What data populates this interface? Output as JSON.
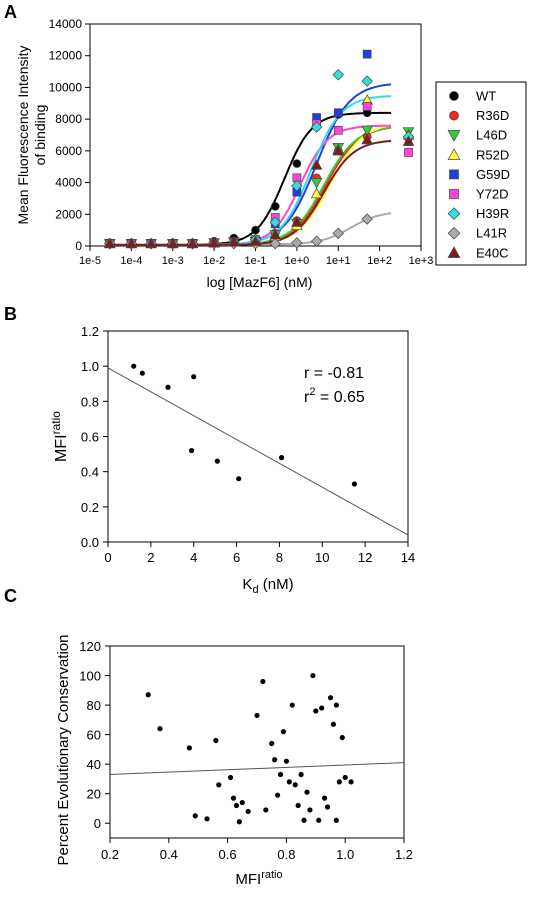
{
  "chart_data": [
    {
      "panel": "A",
      "type": "scatter",
      "ylabel_lines": [
        "Mean Fluorescence Intensity",
        "of binding"
      ],
      "xlabel": "log [MazF6] (nM)",
      "xscale": "log",
      "xlim": [
        1e-05,
        1000
      ],
      "ylim": [
        0,
        14000
      ],
      "xticks": [
        1e-05,
        0.0001,
        0.001,
        0.01,
        0.1,
        1,
        10,
        100,
        1000
      ],
      "xtick_labels": [
        "1e-5",
        "1e-4",
        "1e-3",
        "1e-2",
        "1e-1",
        "1e+0",
        "1e+1",
        "1e+2",
        "1e+3"
      ],
      "yticks": [
        0,
        2000,
        4000,
        6000,
        8000,
        10000,
        12000,
        14000
      ],
      "ytick_labels": [
        "0",
        "2000",
        "4000",
        "6000",
        "8000",
        "10000",
        "12000",
        "14000"
      ],
      "x": [
        3e-05,
        0.0001,
        0.0003,
        0.001,
        0.003,
        0.01,
        0.03,
        0.1,
        0.3,
        1,
        3,
        10,
        50,
        500
      ],
      "legend_position": "right",
      "series": [
        {
          "name": "WT",
          "color": "#000000",
          "marker": "circle",
          "values": [
            200,
            200,
            200,
            200,
            200,
            300,
            500,
            1000,
            2500,
            5200,
            7600,
            8300,
            8400,
            null
          ],
          "fit": {
            "bottom": 80,
            "top": 8400,
            "ec50": 0.5,
            "hill": 1.3
          }
        },
        {
          "name": "R36D",
          "color": "#ff2020",
          "marker": "circle",
          "values": [
            150,
            150,
            150,
            150,
            150,
            200,
            250,
            300,
            800,
            1600,
            4300,
            6000,
            6900,
            6800
          ],
          "fit": {
            "bottom": 60,
            "top": 7600,
            "ec50": 5,
            "hill": 1.1
          }
        },
        {
          "name": "L46D",
          "color": "#33cc33",
          "marker": "triangle-down",
          "values": [
            150,
            150,
            150,
            150,
            150,
            200,
            250,
            300,
            700,
            1400,
            4000,
            6200,
            7300,
            7200
          ],
          "fit": {
            "bottom": 60,
            "top": 7600,
            "ec50": 4.5,
            "hill": 1.1
          }
        },
        {
          "name": "R52D",
          "color": "#ffff33",
          "marker": "triangle-up",
          "values": [
            150,
            150,
            150,
            150,
            150,
            200,
            250,
            300,
            600,
            1300,
            3300,
            6100,
            9200,
            7000
          ],
          "fit": {
            "bottom": 60,
            "top": 7800,
            "ec50": 6.5,
            "hill": 1.1
          }
        },
        {
          "name": "G59D",
          "color": "#1f3fe0",
          "marker": "square",
          "values": [
            150,
            150,
            150,
            150,
            150,
            200,
            250,
            400,
            1400,
            3400,
            8100,
            8400,
            12100,
            null
          ],
          "fit": {
            "bottom": 60,
            "top": 10300,
            "ec50": 3,
            "hill": 1.1
          }
        },
        {
          "name": "Y72D",
          "color": "#ff44dd",
          "marker": "square",
          "values": [
            150,
            150,
            150,
            150,
            150,
            200,
            250,
            400,
            1800,
            4300,
            7700,
            7300,
            8800,
            5900
          ],
          "fit": {
            "bottom": 60,
            "top": 7600,
            "ec50": 1.2,
            "hill": 1.3
          }
        },
        {
          "name": "H39R",
          "color": "#33dddd",
          "marker": "diamond",
          "values": [
            150,
            150,
            150,
            150,
            150,
            200,
            250,
            400,
            1500,
            3800,
            7500,
            10800,
            10400,
            6900
          ],
          "fit": {
            "bottom": 60,
            "top": 9500,
            "ec50": 2.2,
            "hill": 1.2
          }
        },
        {
          "name": "L41R",
          "color": "#aaaaaa",
          "marker": "diamond",
          "values": [
            150,
            150,
            150,
            150,
            150,
            150,
            150,
            150,
            150,
            200,
            300,
            800,
            1700,
            null
          ],
          "fit": {
            "bottom": 100,
            "top": 2200,
            "ec50": 20,
            "hill": 1.2
          }
        },
        {
          "name": "E40C",
          "color": "#7a1f1f",
          "marker": "triangle-up",
          "values": [
            150,
            150,
            150,
            150,
            150,
            200,
            250,
            300,
            700,
            1500,
            5100,
            6000,
            6700,
            6600
          ],
          "fit": {
            "bottom": 60,
            "top": 6700,
            "ec50": 4.5,
            "hill": 1.2
          }
        }
      ]
    },
    {
      "panel": "B",
      "type": "scatter",
      "ylabel_base": "MFI",
      "ylabel_sup": "ratio",
      "xlabel_base": "K",
      "xlabel_sub": "d",
      "xlabel_unit": " (nM)",
      "xlim": [
        0,
        14
      ],
      "ylim": [
        0,
        1.2
      ],
      "xticks": [
        0,
        2,
        4,
        6,
        8,
        10,
        12,
        14
      ],
      "xtick_labels": [
        "0",
        "2",
        "4",
        "6",
        "8",
        "10",
        "12",
        "14"
      ],
      "yticks": [
        0,
        0.2,
        0.4,
        0.6,
        0.8,
        1.0,
        1.2
      ],
      "ytick_labels": [
        "0.0",
        "0.2",
        "0.4",
        "0.6",
        "0.8",
        "1.0",
        "1.2"
      ],
      "points": [
        {
          "x": 1.2,
          "y": 1.0
        },
        {
          "x": 1.6,
          "y": 0.96
        },
        {
          "x": 2.8,
          "y": 0.88
        },
        {
          "x": 3.9,
          "y": 0.52
        },
        {
          "x": 4.0,
          "y": 0.94
        },
        {
          "x": 5.1,
          "y": 0.46
        },
        {
          "x": 6.1,
          "y": 0.36
        },
        {
          "x": 8.1,
          "y": 0.48
        },
        {
          "x": 11.5,
          "y": 0.33
        }
      ],
      "regression": {
        "x": [
          0,
          14
        ],
        "y": [
          0.99,
          0.04
        ]
      },
      "annotation_r": "r = -0.81",
      "annotation_r2_base": "r",
      "annotation_r2_sup": "2",
      "annotation_r2_rest": " = 0.65"
    },
    {
      "panel": "C",
      "type": "scatter",
      "ylabel": "Percent Evolutionary Conservation",
      "xlabel_base": "MFI",
      "xlabel_sup": "ratio",
      "xlim": [
        0.2,
        1.2
      ],
      "ylim": [
        -10,
        120
      ],
      "xticks": [
        0.2,
        0.4,
        0.6,
        0.8,
        1.0,
        1.2
      ],
      "xtick_labels": [
        "0.2",
        "0.4",
        "0.6",
        "0.8",
        "1.0",
        "1.2"
      ],
      "yticks": [
        0,
        20,
        40,
        60,
        80,
        100,
        120
      ],
      "ytick_labels": [
        "0",
        "20",
        "40",
        "60",
        "80",
        "100",
        "120"
      ],
      "points": [
        {
          "x": 0.33,
          "y": 87
        },
        {
          "x": 0.37,
          "y": 64
        },
        {
          "x": 0.47,
          "y": 51
        },
        {
          "x": 0.49,
          "y": 5
        },
        {
          "x": 0.53,
          "y": 3
        },
        {
          "x": 0.57,
          "y": 26
        },
        {
          "x": 0.61,
          "y": 31
        },
        {
          "x": 0.62,
          "y": 17
        },
        {
          "x": 0.63,
          "y": 12
        },
        {
          "x": 0.64,
          "y": 1
        },
        {
          "x": 0.65,
          "y": 14
        },
        {
          "x": 0.67,
          "y": 8
        },
        {
          "x": 0.7,
          "y": 73
        },
        {
          "x": 0.72,
          "y": 96
        },
        {
          "x": 0.73,
          "y": 9
        },
        {
          "x": 0.75,
          "y": 54
        },
        {
          "x": 0.76,
          "y": 43
        },
        {
          "x": 0.77,
          "y": 19
        },
        {
          "x": 0.78,
          "y": 33
        },
        {
          "x": 0.79,
          "y": 62
        },
        {
          "x": 0.8,
          "y": 42
        },
        {
          "x": 0.81,
          "y": 28
        },
        {
          "x": 0.82,
          "y": 80
        },
        {
          "x": 0.83,
          "y": 26
        },
        {
          "x": 0.84,
          "y": 12
        },
        {
          "x": 0.85,
          "y": 33
        },
        {
          "x": 0.86,
          "y": 2
        },
        {
          "x": 0.87,
          "y": 21
        },
        {
          "x": 0.88,
          "y": 9
        },
        {
          "x": 0.89,
          "y": 100
        },
        {
          "x": 0.9,
          "y": 76
        },
        {
          "x": 0.91,
          "y": 2
        },
        {
          "x": 0.92,
          "y": 78
        },
        {
          "x": 0.93,
          "y": 17
        },
        {
          "x": 0.94,
          "y": 11
        },
        {
          "x": 0.95,
          "y": 85
        },
        {
          "x": 0.96,
          "y": 67
        },
        {
          "x": 0.97,
          "y": 80
        },
        {
          "x": 0.98,
          "y": 28
        },
        {
          "x": 0.99,
          "y": 58
        },
        {
          "x": 1.0,
          "y": 31
        },
        {
          "x": 1.02,
          "y": 28
        },
        {
          "x": 0.97,
          "y": 2
        },
        {
          "x": 0.56,
          "y": 56
        }
      ],
      "regression": {
        "x": [
          0.2,
          1.2
        ],
        "y": [
          33,
          41
        ]
      }
    }
  ],
  "panel_labels": [
    "A",
    "B",
    "C"
  ]
}
